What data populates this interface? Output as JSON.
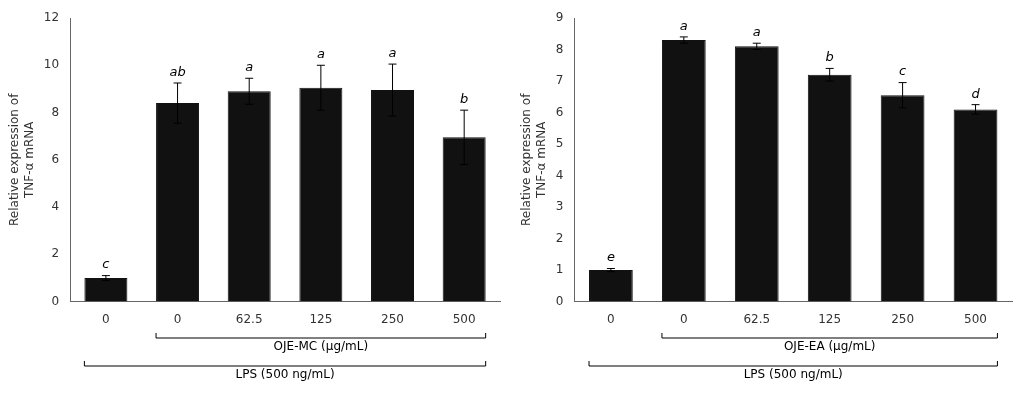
{
  "chart_data": [
    {
      "type": "bar",
      "categories": [
        "0",
        "0",
        "62.5",
        "125",
        "250",
        "500"
      ],
      "values": [
        1.0,
        8.4,
        8.9,
        9.05,
        8.95,
        6.95
      ],
      "errors": [
        0.1,
        0.85,
        0.55,
        0.95,
        1.1,
        1.15
      ],
      "annotations": [
        "c",
        "ab",
        "a",
        "a",
        "a",
        "b"
      ],
      "ylabel": "Relative expression of\nTNF-α mRNA",
      "ylim": [
        0,
        12
      ],
      "yticks": [
        0,
        2,
        4,
        6,
        8,
        10,
        12
      ],
      "brackets": [
        {
          "label": "OJE-MC (μg/mL)",
          "from": 1,
          "to": 5
        },
        {
          "label": "LPS (500 ng/mL)",
          "from": 0,
          "to": 5
        }
      ],
      "color": "#111111",
      "grid": false
    },
    {
      "type": "bar",
      "categories": [
        "0",
        "0",
        "62.5",
        "125",
        "250",
        "500"
      ],
      "values": [
        1.0,
        8.3,
        8.1,
        7.2,
        6.55,
        6.1
      ],
      "errors": [
        0.05,
        0.1,
        0.1,
        0.2,
        0.4,
        0.15
      ],
      "annotations": [
        "e",
        "a",
        "a",
        "b",
        "c",
        "d"
      ],
      "ylabel": "Relative expression of\nTNF-α mRNA",
      "ylim": [
        0,
        9
      ],
      "yticks": [
        0,
        1,
        2,
        3,
        4,
        5,
        6,
        7,
        8,
        9
      ],
      "brackets": [
        {
          "label": "OJE-EA (μg/mL)",
          "from": 1,
          "to": 5
        },
        {
          "label": "LPS (500 ng/mL)",
          "from": 0,
          "to": 5
        }
      ],
      "color": "#111111",
      "grid": false
    }
  ]
}
